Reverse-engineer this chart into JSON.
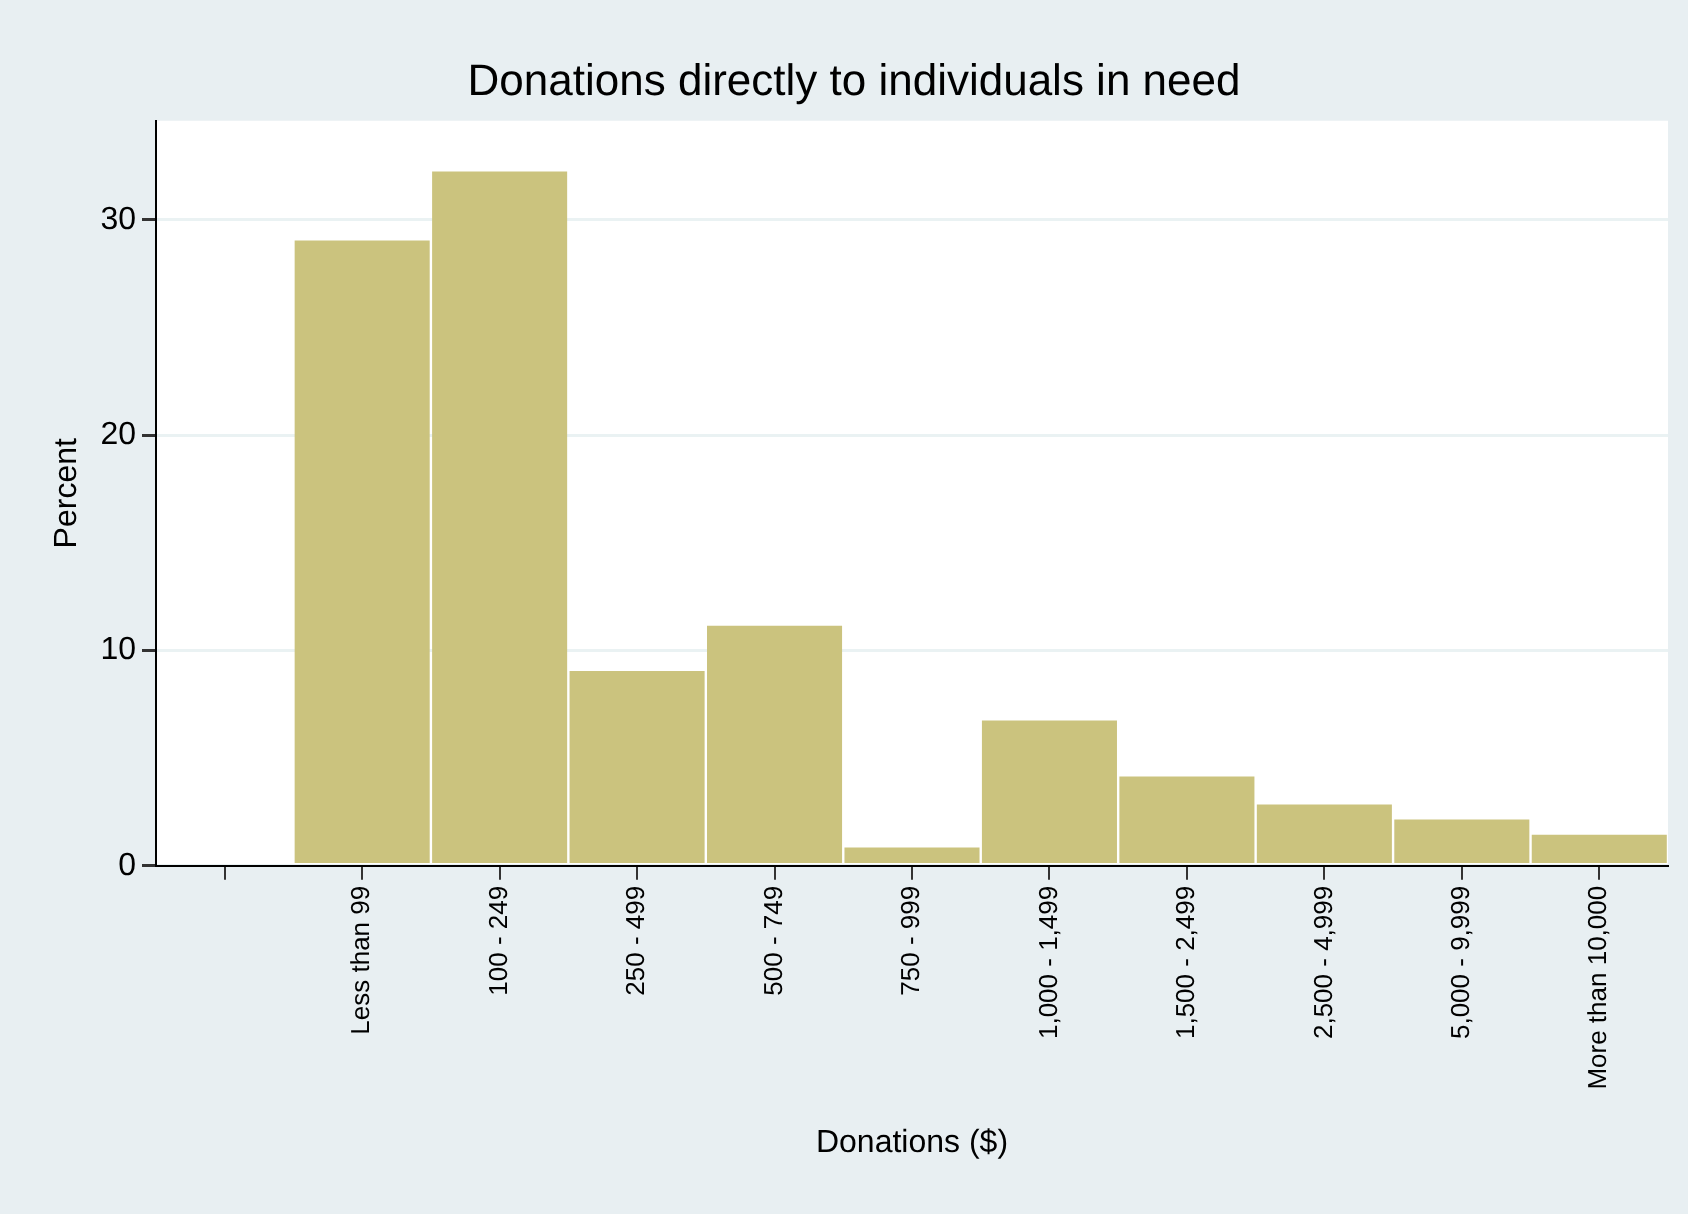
{
  "chart_data": {
    "type": "bar",
    "title": "Donations directly to individuals in need",
    "xlabel": "Donations ($)",
    "ylabel": "Percent",
    "categories": [
      null,
      "Less than 99",
      "100 - 249",
      "250 - 499",
      "500 - 749",
      "750 - 999",
      "1,000 - 1,499",
      "1,500 - 2,499",
      "2,500 - 4,999",
      "5,000 - 9,999",
      "More than 10,000"
    ],
    "values": [
      null,
      29.1,
      32.3,
      9.1,
      11.2,
      0.9,
      6.8,
      4.2,
      2.9,
      2.2,
      1.5
    ],
    "color": "#cbc37e",
    "ylim": [
      0,
      34.6
    ],
    "yticks": [
      0,
      10,
      20,
      30
    ],
    "grid": "y"
  }
}
